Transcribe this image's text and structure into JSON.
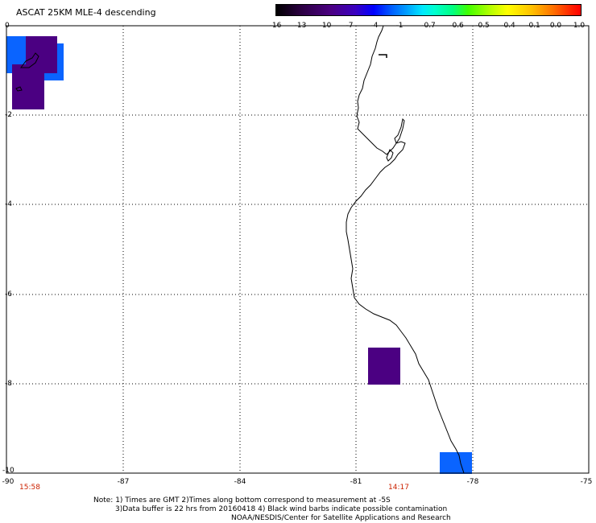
{
  "title": "ASCAT 25KM MLE-4 descending",
  "colorbar": {
    "labels": [
      "-16",
      "-13",
      "-10",
      "-7",
      "-4",
      "-1",
      "-0.7",
      "-0.6",
      "-0.5",
      "-0.4",
      "-0.1",
      "0.0",
      "1.0"
    ]
  },
  "axes": {
    "y_labels": [
      "0",
      "-2",
      "-4",
      "-6",
      "-8",
      "-10"
    ],
    "x_labels": [
      "-90",
      "-87",
      "-84",
      "-81",
      "-78",
      "-75"
    ]
  },
  "times": {
    "left": "15:58",
    "mid": "14:17"
  },
  "notes": {
    "line1": "Note: 1) Times are GMT 2)Times along bottom correspond to measurement at -5S",
    "line2": "3)Data buffer is 22 hrs from 20160418 4) Black wind barbs indicate possible contamination",
    "line3": "NOAA/NESDIS/Center for Satellite Applications and Research"
  },
  "colors": {
    "blue_swath": "#0a64ff",
    "purple_swath": "#4b0082",
    "time_red": "#cc2200"
  }
}
